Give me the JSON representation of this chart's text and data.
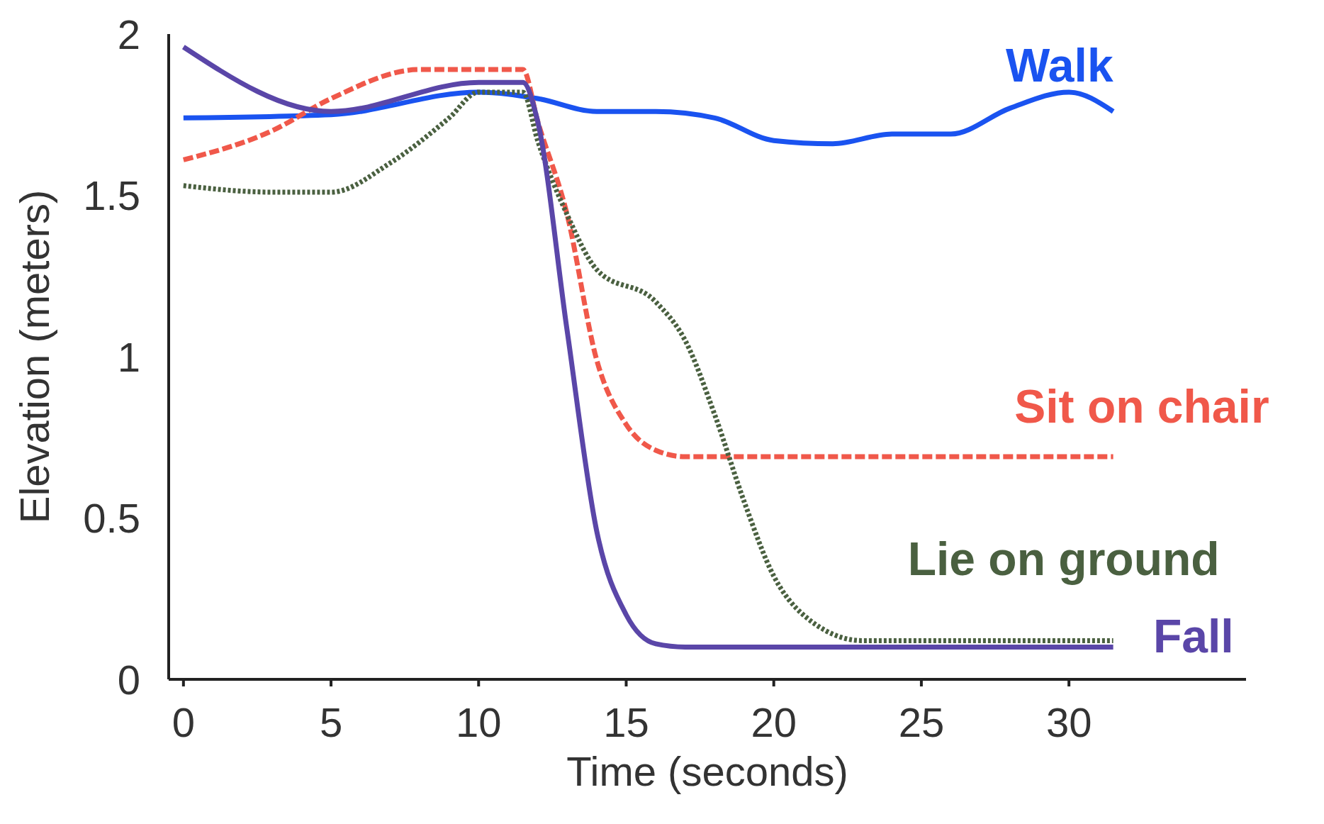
{
  "chart_data": {
    "type": "line",
    "xlabel": "Time (seconds)",
    "ylabel": "Elevation (meters)",
    "xlim": [
      -0.5,
      36
    ],
    "xticks": [
      0,
      5,
      10,
      15,
      20,
      25,
      30
    ],
    "ylim": [
      0,
      2
    ],
    "yticks": [
      0,
      0.5,
      1,
      1.5,
      2
    ],
    "grid": false,
    "legend": false,
    "marker": "none",
    "series": [
      {
        "name": "Walk",
        "color": "#1a53f0",
        "line_style": "solid",
        "x": [
          0,
          5,
          10,
          12,
          14,
          16,
          18,
          20,
          22,
          24,
          26,
          28,
          30,
          31.5
        ],
        "values": [
          1.74,
          1.75,
          1.82,
          1.8,
          1.76,
          1.76,
          1.74,
          1.67,
          1.66,
          1.69,
          1.69,
          1.77,
          1.82,
          1.76
        ]
      },
      {
        "name": "Sit on chair",
        "color": "#f0584a",
        "line_style": "dashed",
        "x": [
          0,
          3,
          5,
          8,
          11.5,
          12,
          13,
          14,
          15,
          16,
          17,
          31.5
        ],
        "values": [
          1.61,
          1.7,
          1.8,
          1.89,
          1.89,
          1.73,
          1.44,
          0.99,
          0.79,
          0.71,
          0.69,
          0.69
        ]
      },
      {
        "name": "Lie on ground",
        "color": "#4a6040",
        "line_style": "dotted",
        "x": [
          0,
          3,
          5,
          7,
          9,
          10,
          11.5,
          12,
          13,
          14,
          16,
          17,
          18,
          19,
          20,
          21,
          23,
          31.5
        ],
        "values": [
          1.53,
          1.51,
          1.51,
          1.6,
          1.74,
          1.82,
          1.82,
          1.67,
          1.44,
          1.27,
          1.17,
          1.05,
          0.82,
          0.55,
          0.32,
          0.2,
          0.12,
          0.12
        ]
      },
      {
        "name": "Fall",
        "color": "#5a46a8",
        "line_style": "solid",
        "x": [
          0,
          5,
          10,
          11.5,
          12,
          13,
          14,
          15,
          16,
          17,
          31.5
        ],
        "values": [
          1.96,
          1.76,
          1.85,
          1.85,
          1.73,
          1.08,
          0.46,
          0.2,
          0.11,
          0.1,
          0.1
        ]
      }
    ]
  }
}
